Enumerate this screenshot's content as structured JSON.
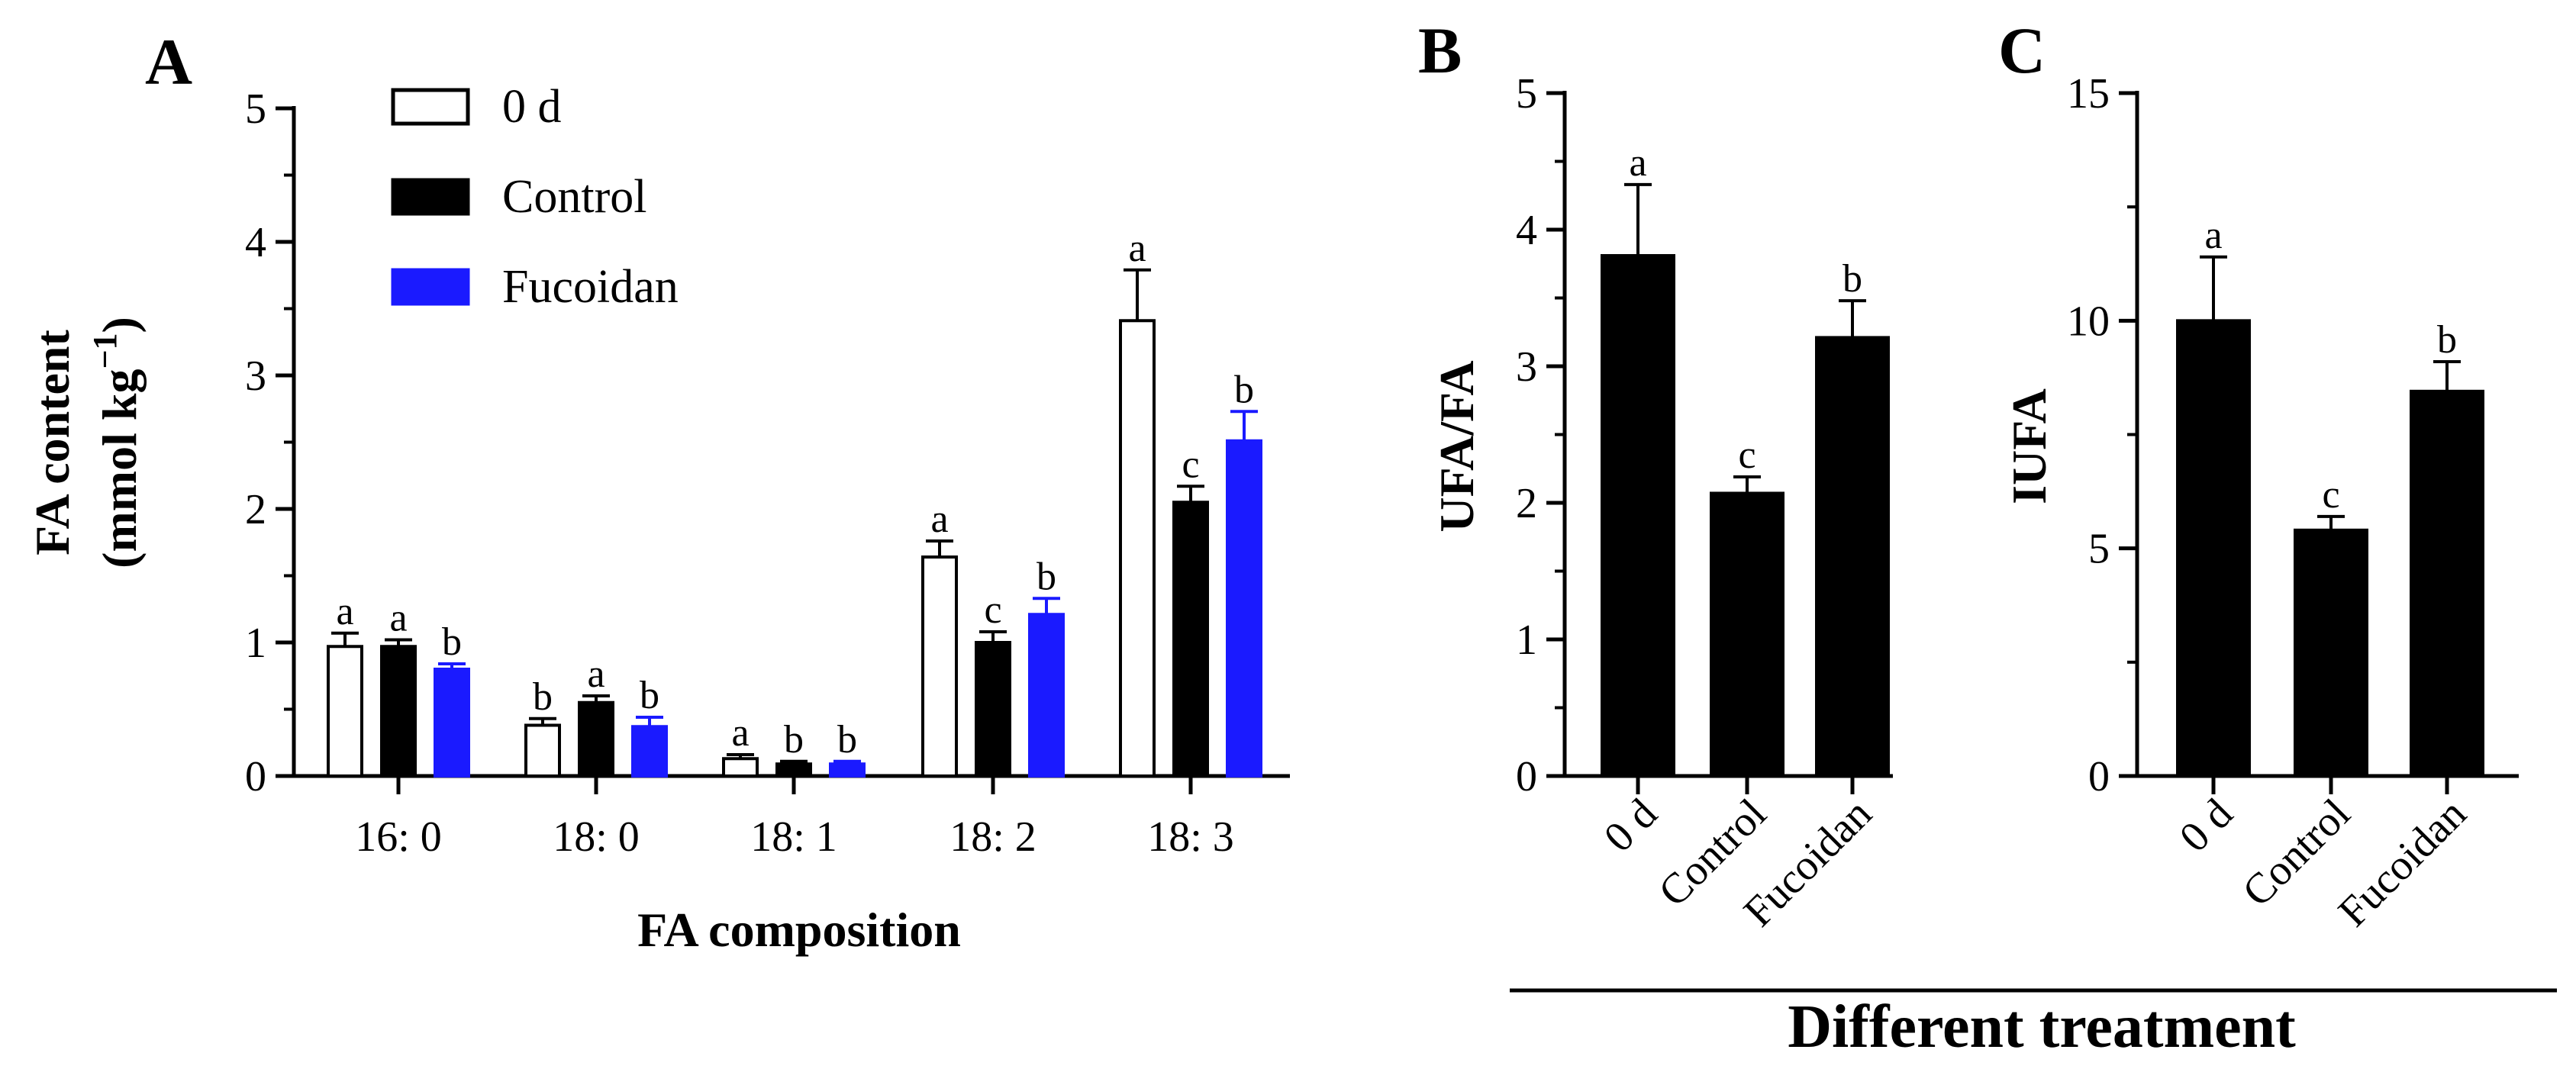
{
  "colors": {
    "day0": "#ffffff",
    "control": "#000000",
    "fucoidan": "#1a1aff",
    "stroke": "#000000"
  },
  "shared_xlabel": "Different treatment",
  "legend": [
    {
      "name": "0 d",
      "color_key": "day0"
    },
    {
      "name": "Control",
      "color_key": "control"
    },
    {
      "name": "Fucoidan",
      "color_key": "fucoidan"
    }
  ],
  "chart_data": [
    {
      "panel": "A",
      "type": "bar",
      "title": "",
      "xlabel": "FA composition",
      "ylabel_line1": "FA content",
      "ylabel_line2": "(mmol kg",
      "ylabel_sup": "−1",
      "ylabel_close": ")",
      "ylim": [
        0,
        5
      ],
      "yticks": [
        "0",
        "1",
        "2",
        "3",
        "4",
        "5"
      ],
      "categories": [
        "16: 0",
        "18: 0",
        "18: 1",
        "18: 2",
        "18: 3"
      ],
      "series": [
        {
          "name": "0 d",
          "color_key": "day0",
          "values": [
            0.97,
            0.38,
            0.13,
            1.64,
            3.41
          ],
          "errors": [
            0.1,
            0.05,
            0.03,
            0.12,
            0.38
          ],
          "letters": [
            "a",
            "b",
            "a",
            "a",
            "a"
          ]
        },
        {
          "name": "Control",
          "color_key": "control",
          "values": [
            0.97,
            0.55,
            0.09,
            1.0,
            2.05
          ],
          "errors": [
            0.05,
            0.05,
            0.02,
            0.08,
            0.12
          ],
          "letters": [
            "a",
            "a",
            "b",
            "c",
            "c"
          ]
        },
        {
          "name": "Fucoidan",
          "color_key": "fucoidan",
          "values": [
            0.8,
            0.37,
            0.09,
            1.21,
            2.51
          ],
          "errors": [
            0.04,
            0.07,
            0.02,
            0.12,
            0.22
          ],
          "letters": [
            "b",
            "b",
            "b",
            "b",
            "b"
          ]
        }
      ]
    },
    {
      "panel": "B",
      "type": "bar",
      "ylabel": "UFA/FA",
      "ylim": [
        0,
        5
      ],
      "yticks": [
        "0",
        "1",
        "2",
        "3",
        "4",
        "5"
      ],
      "categories": [
        "0 d",
        "Control",
        "Fucoidan"
      ],
      "values": [
        3.81,
        2.07,
        3.21
      ],
      "errors": [
        0.52,
        0.12,
        0.27
      ],
      "letters": [
        "a",
        "c",
        "b"
      ]
    },
    {
      "panel": "C",
      "type": "bar",
      "ylabel": "IUFA",
      "ylim": [
        0,
        15
      ],
      "yticks": [
        "0",
        "5",
        "10",
        "15"
      ],
      "categories": [
        "0 d",
        "Control",
        "Fucoidan"
      ],
      "values": [
        10.0,
        5.4,
        8.45
      ],
      "errors": [
        1.4,
        0.3,
        0.65
      ],
      "letters": [
        "a",
        "c",
        "b"
      ]
    }
  ]
}
